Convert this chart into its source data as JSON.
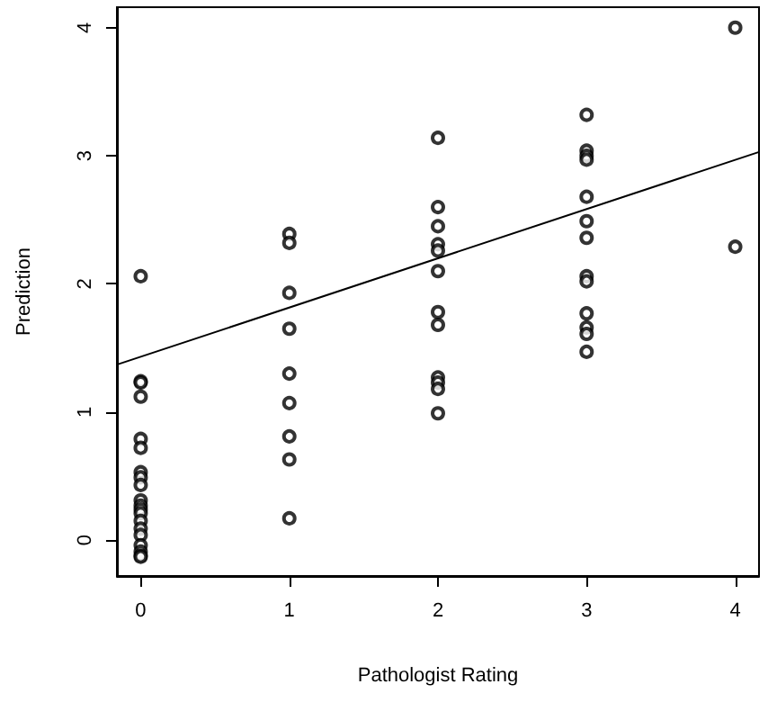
{
  "chart_data": {
    "type": "scatter",
    "xlabel": "Pathologist Rating",
    "ylabel": "Prediction",
    "xlim": [
      -0.16,
      4.16
    ],
    "ylim": [
      -0.28,
      4.16
    ],
    "xticks": [
      0,
      1,
      2,
      3,
      4
    ],
    "yticks": [
      0,
      1,
      2,
      3,
      4
    ],
    "grid": false,
    "marker": "circle",
    "series": [
      {
        "color": "#000000",
        "x": [
          0,
          0,
          0,
          0,
          0,
          0,
          0,
          0,
          0,
          0,
          0,
          0,
          0,
          0,
          0,
          0,
          0,
          0,
          0,
          0,
          1,
          1,
          1,
          1,
          1,
          1,
          1,
          1,
          1,
          2,
          2,
          2,
          2,
          2,
          2,
          2,
          2,
          2,
          2,
          2,
          2,
          3,
          3,
          3,
          3,
          3,
          3,
          3,
          3,
          3,
          3,
          3,
          3,
          3,
          4,
          4
        ],
        "values": [
          2.06,
          1.24,
          1.23,
          1.12,
          0.79,
          0.72,
          0.53,
          0.49,
          0.43,
          0.31,
          0.27,
          0.24,
          0.21,
          0.15,
          0.09,
          0.04,
          -0.04,
          -0.09,
          -0.12,
          -0.13,
          2.39,
          2.32,
          1.93,
          1.65,
          1.3,
          1.07,
          0.81,
          0.63,
          0.17,
          3.14,
          2.6,
          2.45,
          2.31,
          2.26,
          2.1,
          1.78,
          1.68,
          1.27,
          1.23,
          1.18,
          0.99,
          3.32,
          3.04,
          3.0,
          2.97,
          2.68,
          2.49,
          2.36,
          2.06,
          2.02,
          1.77,
          1.66,
          1.61,
          1.47,
          4.0,
          2.29
        ]
      },
      {
        "type": "line",
        "color": "#000000",
        "marker": "none",
        "line_style": "solid",
        "x": [
          -0.16,
          4.16
        ],
        "values": [
          1.37,
          3.03
        ]
      }
    ]
  }
}
